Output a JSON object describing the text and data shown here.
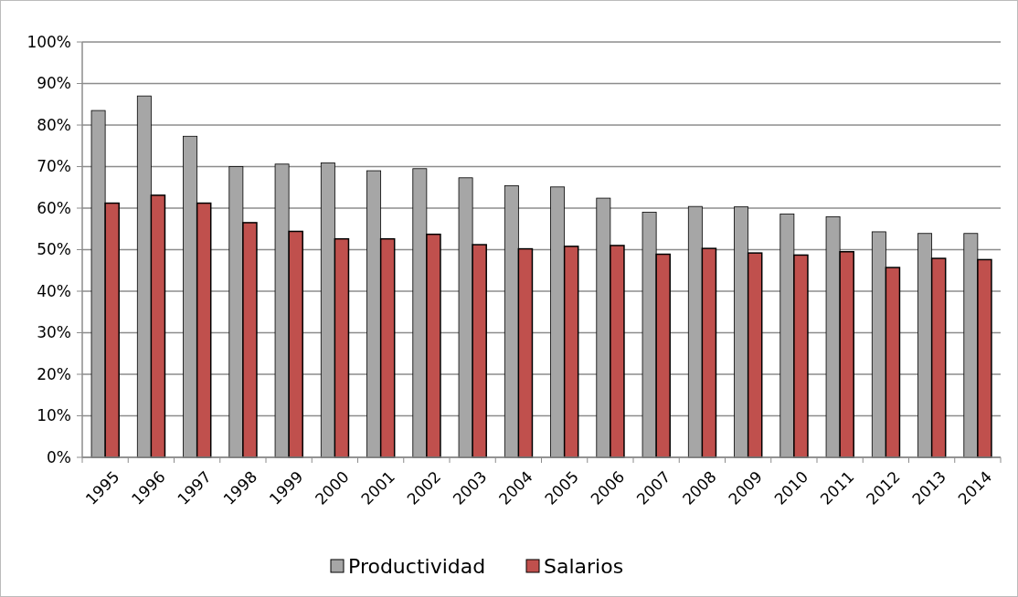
{
  "chart_data": {
    "type": "bar",
    "categories": [
      "1995",
      "1996",
      "1997",
      "1998",
      "1999",
      "2000",
      "2001",
      "2002",
      "2003",
      "2004",
      "2005",
      "2006",
      "2007",
      "2008",
      "2009",
      "2010",
      "2011",
      "2012",
      "2013",
      "2014"
    ],
    "series": [
      {
        "name": "Productividad",
        "color": "#a6a6a6",
        "values": [
          83.5,
          87,
          77.3,
          70,
          70.6,
          70.9,
          69,
          69.5,
          67.3,
          65.4,
          65.1,
          62.4,
          59,
          60.4,
          60.3,
          58.6,
          57.9,
          54.3,
          53.9,
          53.9
        ]
      },
      {
        "name": "Salarios",
        "color": "#c0504d",
        "values": [
          61.2,
          63.1,
          61.2,
          56.5,
          54.4,
          52.6,
          52.6,
          53.7,
          51.2,
          50.2,
          50.8,
          51,
          48.9,
          50.3,
          49.2,
          48.7,
          49.5,
          45.7,
          47.9,
          47.6
        ]
      }
    ],
    "ylim": [
      0,
      100
    ],
    "yticks": [
      {
        "value": 0,
        "label": "0%"
      },
      {
        "value": 10,
        "label": "10%"
      },
      {
        "value": 20,
        "label": "20%"
      },
      {
        "value": 30,
        "label": "30%"
      },
      {
        "value": 40,
        "label": "40%"
      },
      {
        "value": 50,
        "label": "50%"
      },
      {
        "value": 60,
        "label": "60%"
      },
      {
        "value": 70,
        "label": "70%"
      },
      {
        "value": 80,
        "label": "80%"
      },
      {
        "value": 90,
        "label": "90%"
      },
      {
        "value": 100,
        "label": "100%"
      }
    ],
    "grid": "y",
    "legend": "bottom"
  }
}
